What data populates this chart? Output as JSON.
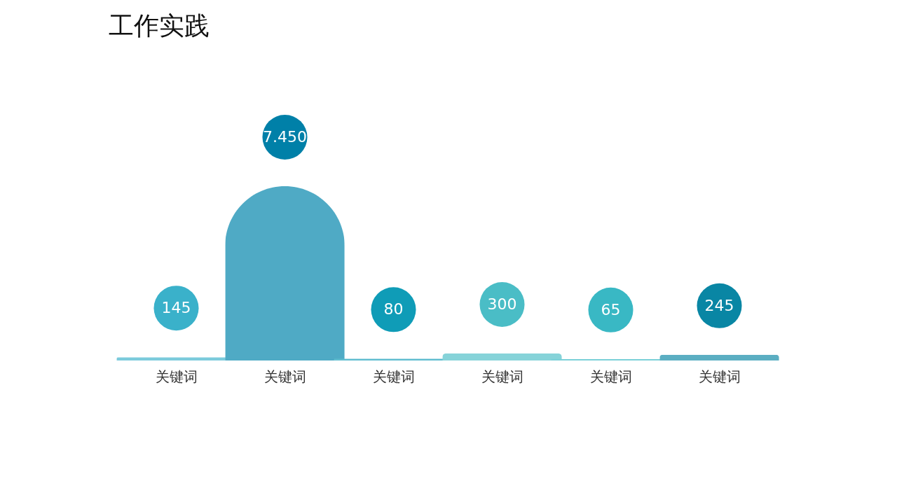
{
  "chart_data": {
    "type": "bar",
    "title": "工作实践",
    "categories": [
      "关键词",
      "关键词",
      "关键词",
      "关键词",
      "关键词",
      "关键词"
    ],
    "values": [
      145,
      7450,
      80,
      300,
      65,
      245
    ],
    "value_labels": [
      "145",
      "7.450",
      "80",
      "300",
      "65",
      "245"
    ],
    "colors": [
      "#7ccbdc",
      "#4faac5",
      "#5fbdcf",
      "#86d3d9",
      "#7bd0d8",
      "#5baec2"
    ],
    "tick_labels": "x"
  }
}
